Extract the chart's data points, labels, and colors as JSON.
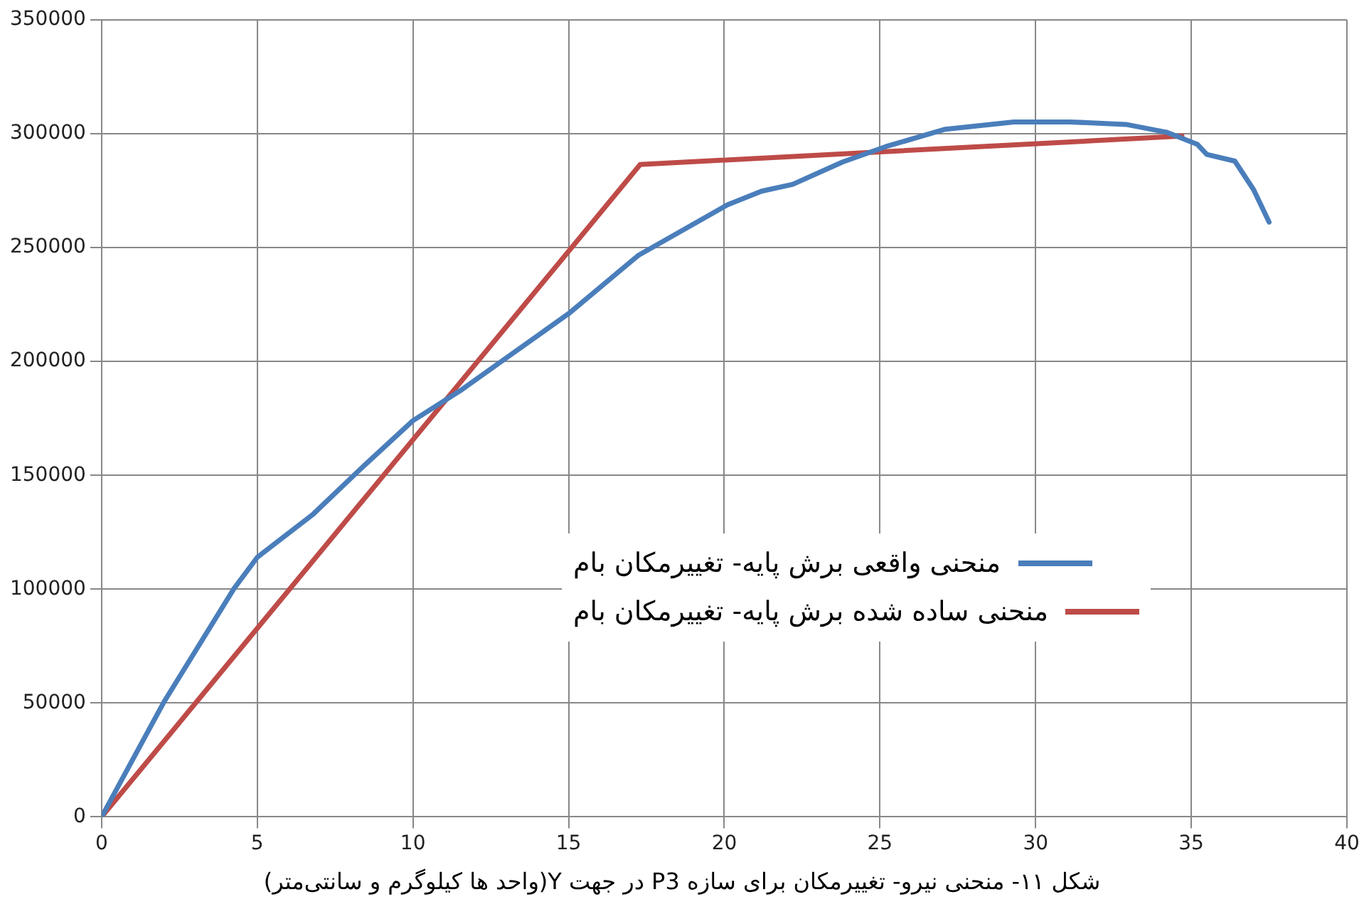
{
  "chart_data": {
    "type": "line",
    "xlim": [
      0,
      40
    ],
    "xticks": [
      0,
      5,
      10,
      15,
      20,
      25,
      30,
      35,
      40
    ],
    "ylim": [
      0,
      350000
    ],
    "yticks": [
      0,
      50000,
      100000,
      150000,
      200000,
      250000,
      300000,
      350000
    ],
    "grid": true,
    "legend": "right",
    "marker": "none",
    "line_style": "solid",
    "series": [
      {
        "name": "منحنی واقعی برش پایه- تغییرمکان بام",
        "color": "#4a7ebb",
        "x": [
          0,
          2.0,
          4.25,
          5.0,
          6.8,
          8.3,
          10,
          11.5,
          15,
          17.25,
          20.1,
          21.2,
          22.2,
          23.8,
          25.2,
          27.1,
          29.3,
          31.1,
          32.9,
          34.2,
          35.2,
          35.5,
          36.4,
          37.0,
          37.5
        ],
        "values": [
          0,
          50400,
          100200,
          114000,
          133000,
          152600,
          174000,
          187000,
          221000,
          246700,
          268800,
          274800,
          277800,
          287600,
          294400,
          302000,
          305200,
          305200,
          304100,
          300700,
          295300,
          290900,
          288000,
          275500,
          261200
        ]
      },
      {
        "name": "منحنی ساده شده برش پایه- تغییرمکان بام",
        "color": "#be4b48",
        "x": [
          0,
          17.3,
          34.7
        ],
        "values": [
          0,
          286500,
          299000
        ]
      }
    ],
    "annotations": [
      "شکل ۱۱- منحنی نیرو- تغییرمکان برای سازه P3 در جهت Y(واحد ها کیلوگرم و سانتی‌متر)"
    ]
  }
}
